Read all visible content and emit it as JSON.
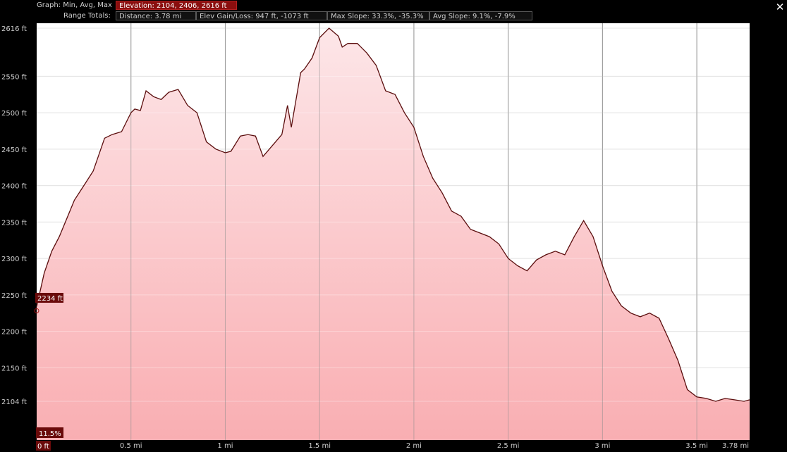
{
  "header": {
    "graph_label": "Graph: Min, Avg, Max",
    "elevation": "Elevation: 2104, 2406, 2616 ft",
    "range_label": "Range Totals:",
    "distance": "Distance: 3.78 mi",
    "elev_gain": "Elev Gain/Loss: 947 ft, -1073 ft",
    "max_slope": "Max Slope: 33.3%, -35.3%",
    "avg_slope": "Avg Slope: 9.1%, -7.9%"
  },
  "close_icon": "close-icon",
  "cursor": {
    "elevation_label": "2234 ft",
    "slope_label": "11.5%",
    "distance_label": "0 ft"
  },
  "colors": {
    "fill_top": "#fde6e8",
    "fill_bottom": "#f9aeb2",
    "line": "#5a0d0d",
    "accent": "#8a0e0e"
  },
  "chart_data": {
    "type": "area",
    "xlabel": "",
    "ylabel": "",
    "xlim": [
      0,
      3.78
    ],
    "ylim": [
      2104,
      2616
    ],
    "grid": true,
    "x_ticks": [
      {
        "value": 0.5,
        "label": "0.5 mi"
      },
      {
        "value": 1.0,
        "label": "1 mi"
      },
      {
        "value": 1.5,
        "label": "1.5 mi"
      },
      {
        "value": 2.0,
        "label": "2 mi"
      },
      {
        "value": 2.5,
        "label": "2.5 mi"
      },
      {
        "value": 3.0,
        "label": "3 mi"
      },
      {
        "value": 3.5,
        "label": "3.5 mi"
      },
      {
        "value": 3.78,
        "label": "3.78 mi"
      }
    ],
    "y_ticks": [
      {
        "value": 2616,
        "label": "2616 ft"
      },
      {
        "value": 2550,
        "label": "2550 ft"
      },
      {
        "value": 2500,
        "label": "2500 ft"
      },
      {
        "value": 2450,
        "label": "2450 ft"
      },
      {
        "value": 2400,
        "label": "2400 ft"
      },
      {
        "value": 2350,
        "label": "2350 ft"
      },
      {
        "value": 2300,
        "label": "2300 ft"
      },
      {
        "value": 2250,
        "label": "2250 ft"
      },
      {
        "value": 2200,
        "label": "2200 ft"
      },
      {
        "value": 2150,
        "label": "2150 ft"
      },
      {
        "value": 2104,
        "label": "2104 ft"
      }
    ],
    "series": [
      {
        "x": [
          0,
          0.04,
          0.08,
          0.12,
          0.16,
          0.2,
          0.25,
          0.3,
          0.36,
          0.4,
          0.45,
          0.5,
          0.52,
          0.55,
          0.58,
          0.62,
          0.66,
          0.7,
          0.75,
          0.8,
          0.85,
          0.9,
          0.95,
          1.0,
          1.03,
          1.08,
          1.12,
          1.16,
          1.2,
          1.25,
          1.3,
          1.33,
          1.35,
          1.37,
          1.4,
          1.42,
          1.46,
          1.5,
          1.55,
          1.6,
          1.62,
          1.65,
          1.7,
          1.75,
          1.8,
          1.85,
          1.9,
          1.95,
          2.0,
          2.05,
          2.1,
          2.15,
          2.2,
          2.25,
          2.3,
          2.35,
          2.4,
          2.45,
          2.5,
          2.55,
          2.6,
          2.65,
          2.7,
          2.75,
          2.8,
          2.85,
          2.9,
          2.95,
          3.0,
          3.05,
          3.1,
          3.15,
          3.2,
          3.25,
          3.3,
          3.35,
          3.4,
          3.45,
          3.5,
          3.55,
          3.6,
          3.65,
          3.7,
          3.75,
          3.78
        ],
        "y": [
          2234,
          2280,
          2310,
          2330,
          2355,
          2380,
          2400,
          2420,
          2465,
          2470,
          2474,
          2500,
          2505,
          2503,
          2530,
          2522,
          2518,
          2528,
          2532,
          2510,
          2500,
          2460,
          2450,
          2445,
          2447,
          2468,
          2470,
          2468,
          2440,
          2455,
          2470,
          2510,
          2480,
          2510,
          2555,
          2560,
          2575,
          2603,
          2616,
          2605,
          2590,
          2595,
          2595,
          2582,
          2565,
          2530,
          2525,
          2500,
          2480,
          2440,
          2410,
          2390,
          2365,
          2358,
          2340,
          2335,
          2330,
          2320,
          2300,
          2290,
          2283,
          2298,
          2305,
          2310,
          2305,
          2330,
          2352,
          2330,
          2290,
          2255,
          2235,
          2225,
          2220,
          2225,
          2218,
          2190,
          2160,
          2120,
          2110,
          2108,
          2104,
          2108,
          2106,
          2104,
          2106
        ]
      }
    ]
  }
}
